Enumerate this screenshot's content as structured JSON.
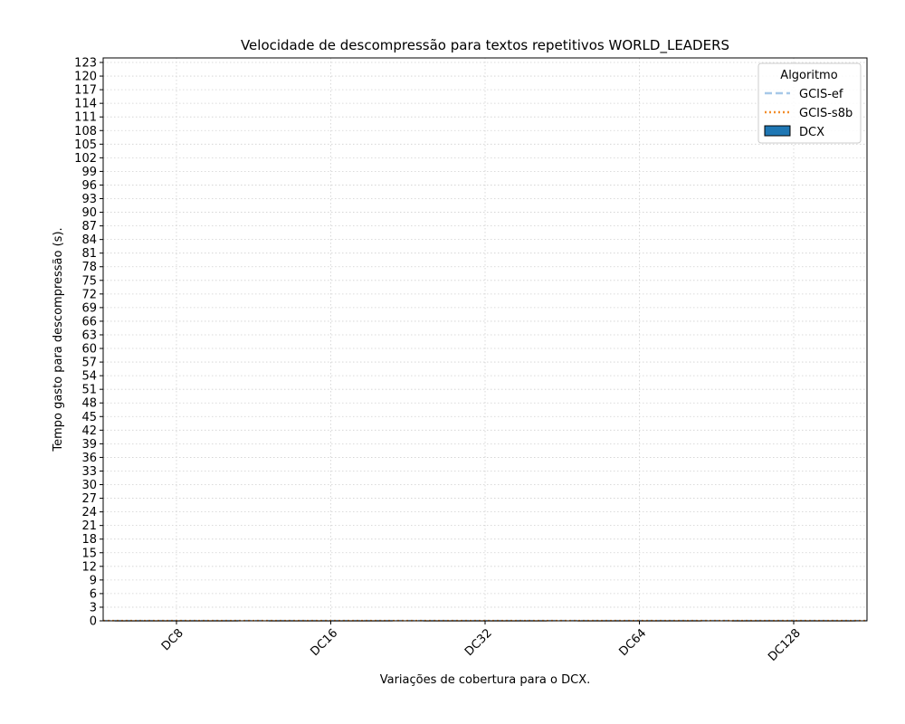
{
  "chart_data": {
    "type": "bar",
    "title": "Velocidade de descompressão para textos repetitivos WORLD_LEADERS",
    "xlabel": "Variações de cobertura para o DCX.",
    "ylabel": "Tempo gasto para descompressão (s).",
    "categories": [
      "DC8",
      "DC16",
      "DC32",
      "DC64",
      "DC128"
    ],
    "ylim": [
      0,
      124
    ],
    "y_ticks": [
      0,
      3,
      6,
      9,
      12,
      15,
      18,
      21,
      24,
      27,
      30,
      33,
      36,
      39,
      42,
      45,
      48,
      51,
      54,
      57,
      60,
      63,
      66,
      69,
      72,
      75,
      78,
      81,
      84,
      87,
      90,
      93,
      96,
      99,
      102,
      105,
      108,
      111,
      114,
      117,
      120,
      123
    ],
    "grid": true,
    "series": [
      {
        "name": "DCX",
        "kind": "bar",
        "values": [
          0.05,
          0.05,
          0.05,
          0.05,
          0.05
        ]
      },
      {
        "name": "GCIS-ef",
        "kind": "hline",
        "value": 0.05
      },
      {
        "name": "GCIS-s8b",
        "kind": "hline",
        "value": 0.05
      }
    ],
    "legend": {
      "title": "Algoritmo",
      "position": "top-right",
      "entries": [
        {
          "label": "GCIS-ef",
          "style": "dashed",
          "color": "#a6c8e8"
        },
        {
          "label": "GCIS-s8b",
          "style": "dotted",
          "color": "#f28e2b"
        },
        {
          "label": "DCX",
          "style": "patch",
          "color": "#1f77b4"
        }
      ]
    },
    "colors": {
      "dcx": "#1f77b4",
      "gcis_ef": "#a6c8e8",
      "gcis_s8b": "#f28e2b"
    }
  }
}
